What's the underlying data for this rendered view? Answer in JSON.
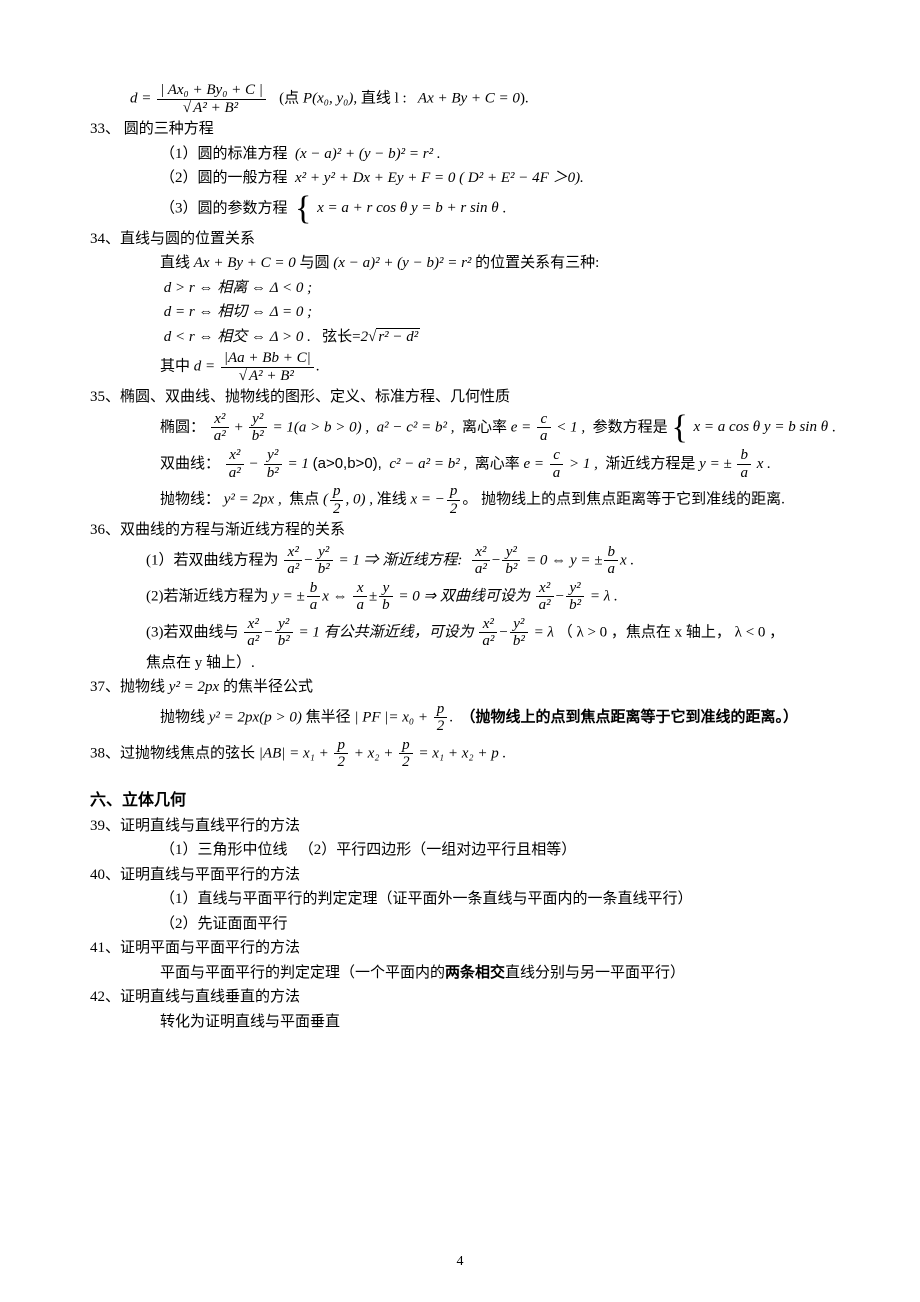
{
  "page_number": "4",
  "colors": {
    "text": "#000000",
    "background": "#ffffff"
  },
  "typography": {
    "body_font": "SimSun",
    "math_font": "Times New Roman",
    "body_size_pt": 11,
    "section_title_size_pt": 12
  },
  "formula_top": {
    "lhs": "d =",
    "num": "| Ax₀ + By₀ + C |",
    "den_sqrt": "A² + B²",
    "note_prefix": "(点",
    "point": "P(x₀, y₀)",
    "line_label": ", 直线 l :",
    "line_eq": "Ax + By + C = 0",
    "suffix": ")."
  },
  "item33": {
    "label": "33、",
    "title": "圆的三种方程",
    "p1_label": "（1）圆的标准方程",
    "p1_eq": "(x − a)² + (y − b)² = r² .",
    "p2_label": "（2）圆的一般方程",
    "p2_eq": "x² + y² + Dx + Ey + F = 0",
    "p2_cond": "( D² + E² − 4F ＞0).",
    "p3_label": "（3）圆的参数方程",
    "p3_row1": "x = a + r cos θ",
    "p3_row2": "y = b + r sin θ",
    "p3_suffix": "."
  },
  "item34": {
    "label": "34、",
    "title": "直线与圆的位置关系",
    "sentence_pre": "直线",
    "line_eq": "Ax + By + C = 0",
    "mid": "与圆",
    "circle_eq": "(x − a)² + (y − b)² = r²",
    "sentence_post": "的位置关系有三种:",
    "case1": "d > r ⇔ 相离 ⇔ Δ < 0 ;",
    "case2": "d = r ⇔ 相切 ⇔ Δ = 0 ;",
    "case3_pre": "d < r ⇔ 相交 ⇔ Δ > 0 .",
    "chord_label": "弦长=",
    "chord_val": "2",
    "chord_sqrt": "r² − d²",
    "where_label": "其中",
    "where_lhs": "d =",
    "where_num": "|Aa + Bb + C|",
    "where_den_sqrt": "A² + B²",
    "where_suffix": "."
  },
  "item35": {
    "label": "35、",
    "title": "椭圆、双曲线、抛物线的图形、定义、标准方程、几何性质",
    "ellipse_label": "椭圆：",
    "ellipse_eq_lhs_num1": "x²",
    "ellipse_eq_lhs_den1": "a²",
    "ellipse_eq_lhs_num2": "y²",
    "ellipse_eq_lhs_den2": "b²",
    "ellipse_eq_rhs": "= 1(a > b > 0) ,",
    "ellipse_rel": "a² − c² = b² ,",
    "ecc_label": "离心率",
    "ellipse_ecc": "e =",
    "ellipse_ecc_num": "c",
    "ellipse_ecc_den": "a",
    "ellipse_ecc_cmp": "< 1 ,",
    "param_label": "参数方程是",
    "param_row1": "x = a cos θ",
    "param_row2": "y = b sin θ",
    "param_suffix": ".",
    "hyper_label": "双曲线：",
    "hyper_eq_rhs": "= 1",
    "hyper_cond": "(a>0,b>0),",
    "hyper_rel": "c² − a² = b² ,",
    "hyper_ecc_cmp": "> 1 ,",
    "asym_label": "渐近线方程是",
    "asym_eq": "y = ±",
    "asym_num": "b",
    "asym_den": "a",
    "asym_suffix": "x .",
    "para_label": "抛物线：",
    "para_eq": "y² = 2px ,",
    "focus_label": "焦点",
    "focus_val_pre": "(",
    "focus_num": "p",
    "focus_den": "2",
    "focus_val_post": ", 0) ,",
    "directrix_label": "准线",
    "directrix_eq": "x = −",
    "directrix_suffix": "。",
    "para_note": "抛物线上的点到焦点距离等于它到准线的距离."
  },
  "item36": {
    "label": "36、",
    "title": "双曲线的方程与渐近线方程的关系",
    "p1_pre": "(1）若双曲线方程为",
    "p1_mid": "= 1 ⇒ 渐近线方程:",
    "p1_eq2_rhs": "= 0 ⇔",
    "p1_asym": "y = ±",
    "p1_suffix": "x .",
    "p2_pre": "(2)若渐近线方程为",
    "p2_mid1": "x ⇔",
    "p2_mid2": "= 0 ⇒ 双曲线可设为",
    "p2_rhs": "= λ .",
    "p3_pre": "(3)若双曲线与",
    "p3_mid": "= 1 有公共渐近线，可设为",
    "p3_rhs": "= λ",
    "p3_cond": "（ λ > 0 ，焦点在 x 轴上， λ < 0 ，",
    "p3_tail": "焦点在 y 轴上）."
  },
  "item37": {
    "label": "37、",
    "title_pre": "抛物线",
    "title_eq": "y² = 2px",
    "title_post": "的焦半径公式",
    "body_pre": "抛物线",
    "body_eq": "y² = 2px(p > 0)",
    "body_mid": "焦半径",
    "pf_eq": "| PF |= x₀ +",
    "pf_num": "p",
    "pf_den": "2",
    "pf_suffix": ".",
    "note": "（抛物线上的点到焦点距离等于它到准线的距离。）"
  },
  "item38": {
    "label": "38、",
    "title": "过抛物线焦点的弦长",
    "ab": "|AB|",
    "eq_mid": "= x₁ +",
    "plus": "+ x₂ +",
    "rhs": "= x₁ + x₂ + p ."
  },
  "section6": {
    "title": "六、立体几何"
  },
  "item39": {
    "label": "39、",
    "title": "证明直线与直线平行的方法",
    "p1": "（1）三角形中位线",
    "p2": "（2）平行四边形（一组对边平行且相等）"
  },
  "item40": {
    "label": "40、",
    "title": "证明直线与平面平行的方法",
    "p1": "（1）直线与平面平行的判定定理（证平面外一条直线与平面内的一条直线平行）",
    "p2": "（2）先证面面平行"
  },
  "item41": {
    "label": "41、",
    "title": "证明平面与平面平行的方法",
    "body_pre": "平面与平面平行的判定定理（一个平面内的",
    "body_bold": "两条相交",
    "body_post": "直线分别与另一平面平行）"
  },
  "item42": {
    "label": "42、",
    "title": "证明直线与直线垂直的方法",
    "body": "转化为证明直线与平面垂直"
  }
}
